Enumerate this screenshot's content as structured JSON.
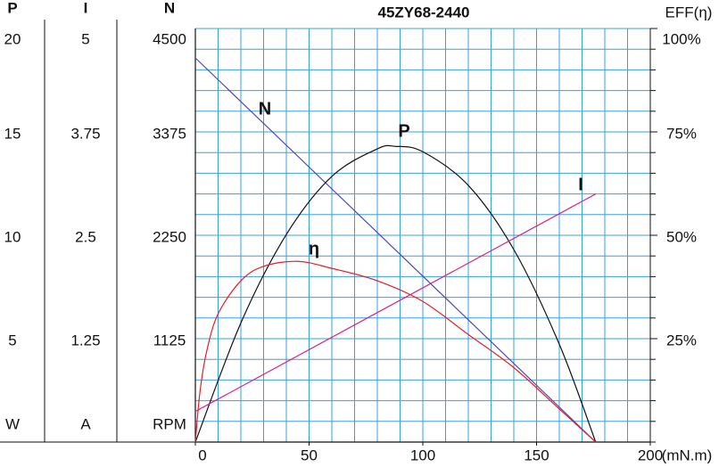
{
  "chart_data": {
    "type": "line",
    "title": "45ZY68-2440",
    "xlim": [
      0,
      200
    ],
    "xticks": [
      0,
      50,
      100,
      150,
      200
    ],
    "x_label": "(mN.m)",
    "grid": true,
    "left_axes": [
      {
        "title": "P",
        "unit": "W",
        "ylim": [
          0,
          20
        ],
        "yticks": [
          5,
          10,
          15,
          20
        ]
      },
      {
        "title": "I",
        "unit": "A",
        "ylim": [
          0,
          5
        ],
        "yticks": [
          1.25,
          2.5,
          3.75,
          5
        ]
      },
      {
        "title": "N",
        "unit": "RPM",
        "ylim": [
          0,
          4500
        ],
        "yticks": [
          1125,
          2250,
          3375,
          4500
        ]
      }
    ],
    "y2_title": "EFF(η)",
    "y2lim": [
      0,
      100
    ],
    "y2ticks": [
      {
        "value": 25,
        "label": "25%"
      },
      {
        "value": 50,
        "label": "50%"
      },
      {
        "value": 75,
        "label": "75%"
      },
      {
        "value": 100,
        "label": "100%"
      }
    ],
    "series": [
      {
        "name": "N",
        "color": "#4a4ab4",
        "axis": 2,
        "x": [
          0,
          176
        ],
        "values": [
          4180,
          0
        ]
      },
      {
        "name": "P",
        "color": "#111111",
        "axis": 0,
        "x": [
          0,
          20,
          40,
          60,
          80,
          88,
          100,
          120,
          140,
          160,
          176
        ],
        "values": [
          0,
          5.76,
          10.04,
          12.85,
          14.18,
          14.3,
          14.04,
          12.41,
          9.31,
          4.73,
          0
        ]
      },
      {
        "name": "I",
        "color": "#d0208c",
        "axis": 1,
        "x": [
          0,
          176
        ],
        "values": [
          0.37,
          3.0
        ]
      },
      {
        "name": "η",
        "color": "#e0202a",
        "axis": "y2",
        "x": [
          0,
          2,
          5,
          10,
          20,
          30,
          45,
          60,
          80,
          100,
          120,
          140,
          160,
          176
        ],
        "values": [
          0,
          12,
          22,
          31,
          39,
          42.5,
          43.7,
          42,
          39,
          34,
          26,
          18,
          8,
          0
        ]
      }
    ]
  }
}
